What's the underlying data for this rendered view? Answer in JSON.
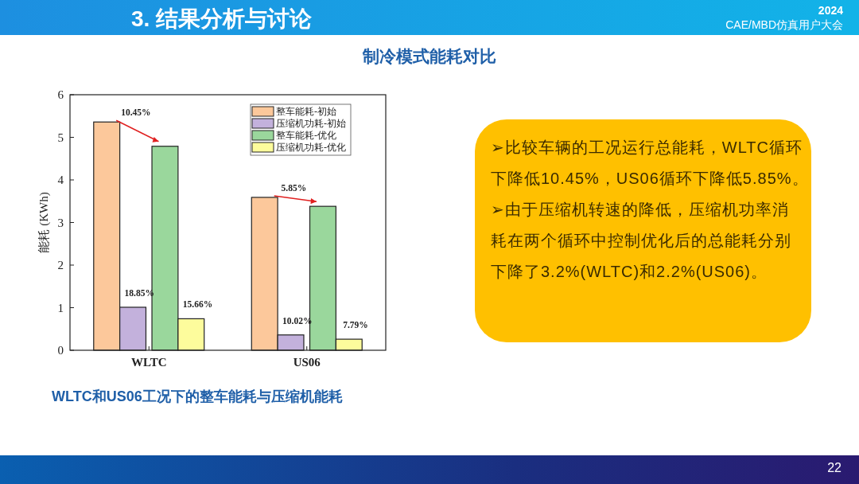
{
  "chart_data": {
    "type": "bar",
    "title": "制冷模式能耗对比",
    "subtitle": "WLTC和US06工况下的整车能耗与压缩机能耗",
    "ylabel": "能耗 (KWh)",
    "categories": [
      "WLTC",
      "US06"
    ],
    "series": [
      {
        "name": "整车能耗-初始",
        "color": "#fcc89b",
        "values": [
          5.36,
          3.59
        ]
      },
      {
        "name": "压缩机功耗-初始",
        "color": "#c3b1dc",
        "values": [
          1.01,
          0.36
        ]
      },
      {
        "name": "整车能耗-优化",
        "color": "#9ad79c",
        "values": [
          4.79,
          3.38
        ]
      },
      {
        "name": "压缩机功耗-优化",
        "color": "#fdfc9c",
        "values": [
          0.74,
          0.26
        ]
      }
    ],
    "ylim": [
      0,
      6
    ],
    "yticks": [
      0,
      1,
      2,
      3,
      4,
      5,
      6
    ],
    "grid": false,
    "legend": "top right",
    "annotations": [
      "3. 结果分析与讨论",
      "2024 CAE/MBD仿真用户大会",
      "22",
      "➢比较车辆的工况运行总能耗，WLTC循环下降低10.45%，US06循环下降低5.85%。",
      "➢由于压缩机转速的降低，压缩机功率消耗在两个循环中控制优化后的总能耗分别下降了3.2%(WLTC)和2.2%(US06)。",
      "10.45%",
      "18.85%",
      "15.66%",
      "5.85%",
      "10.02%",
      "7.79%"
    ]
  }
}
